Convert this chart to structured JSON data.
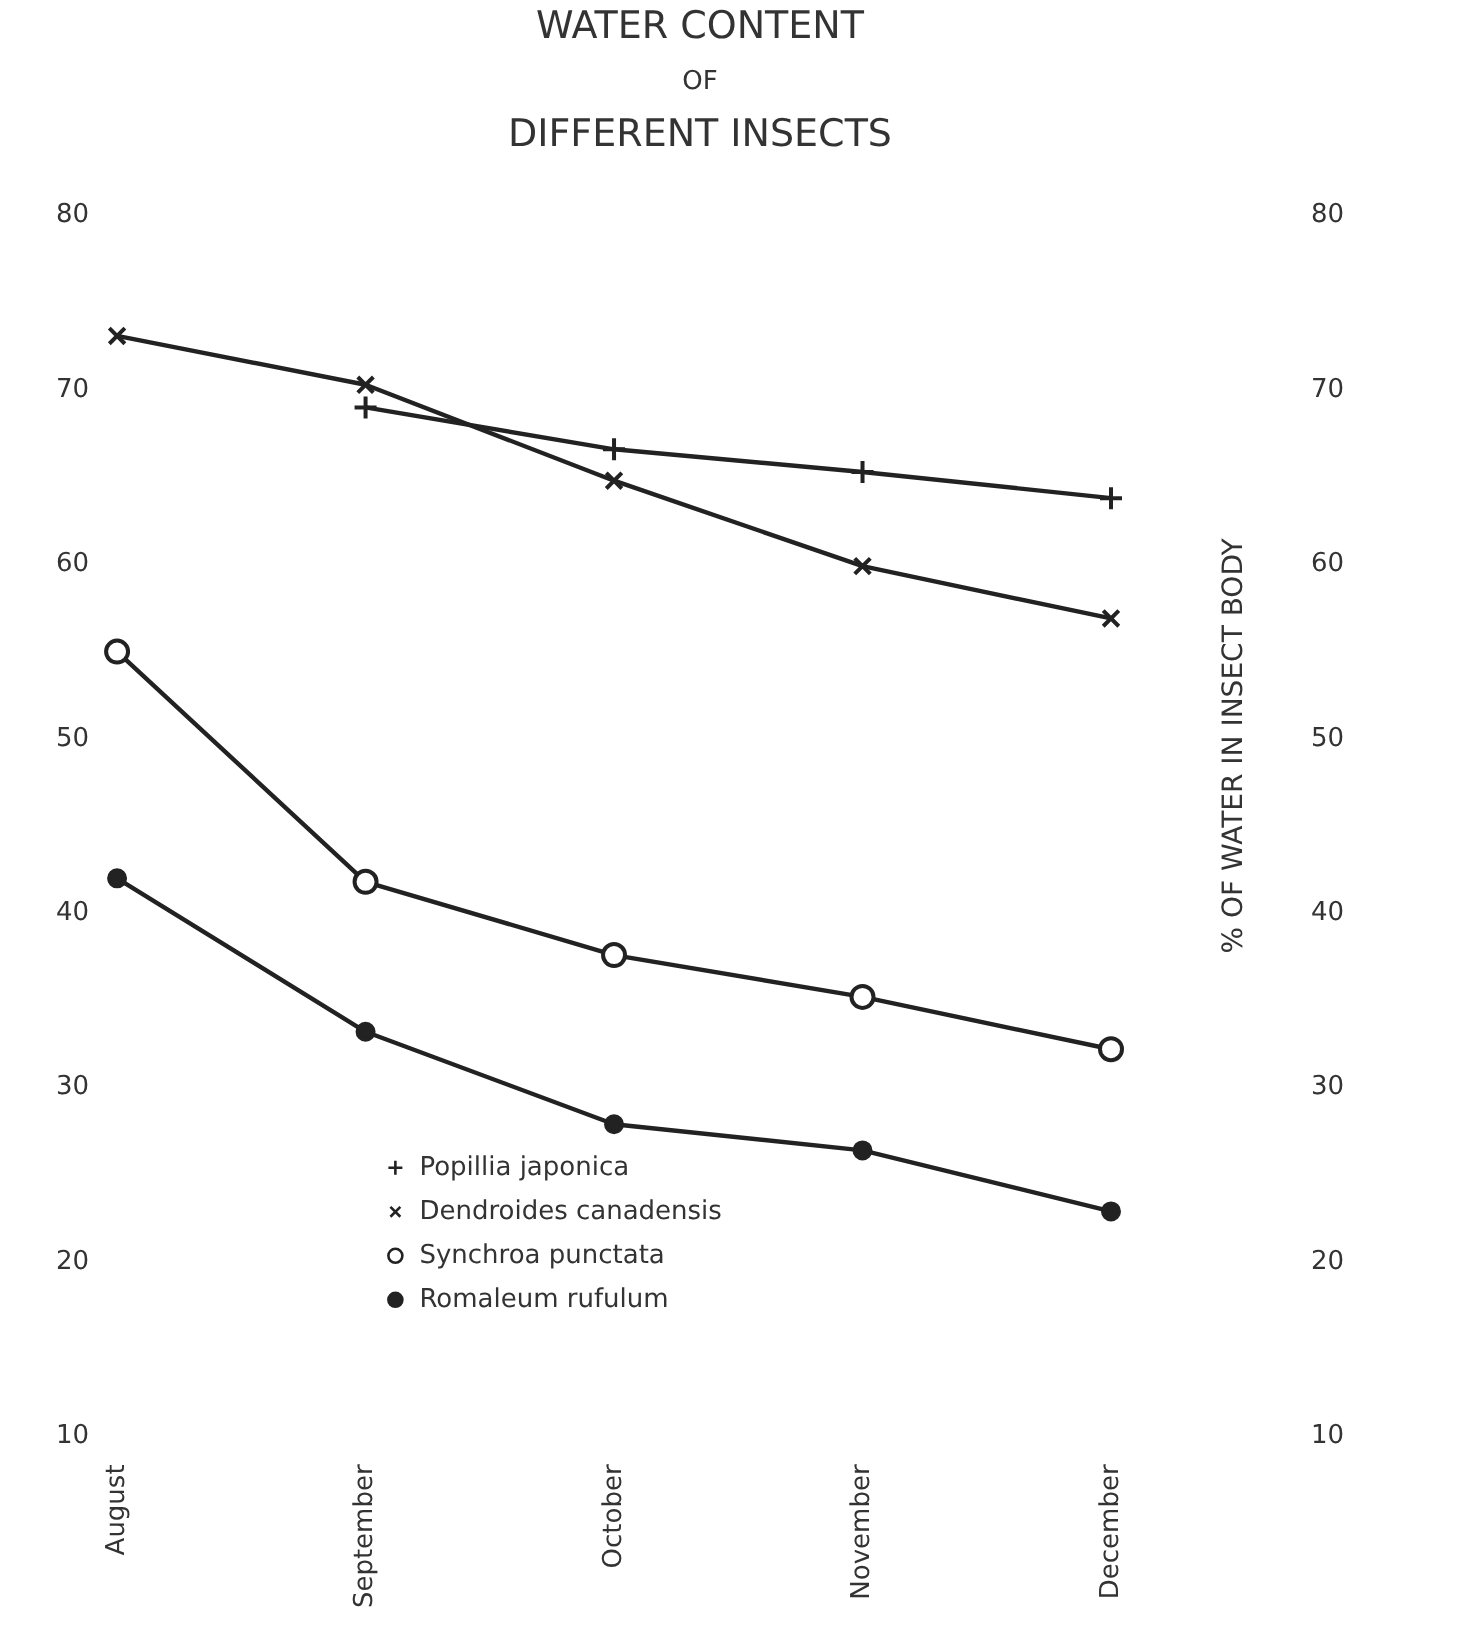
{
  "chart_data": {
    "type": "line",
    "title": "WATER CONTENT\nOF\nDIFFERENT INSECTS",
    "y2label": "% OF WATER IN INSECT BODY",
    "categories": [
      "August",
      "September",
      "October",
      "November",
      "December"
    ],
    "series": [
      {
        "name": "Popillia japonica",
        "color": "#222222",
        "marker": "cross",
        "values": [
          null,
          69.0,
          66.6,
          65.3,
          63.8
        ]
      },
      {
        "name": "Dendroides canadensis",
        "color": "#222222",
        "marker": "x",
        "values": [
          73.1,
          70.3,
          64.8,
          59.9,
          56.9
        ]
      },
      {
        "name": "Synchroa punctata",
        "color": "#222222",
        "marker": "circle-open",
        "values": [
          55.0,
          41.8,
          37.6,
          35.2,
          32.2
        ]
      },
      {
        "name": "Romaleum rufulum",
        "color": "#222222",
        "marker": "circle",
        "values": [
          42.0,
          33.2,
          27.9,
          26.4,
          22.9
        ]
      }
    ],
    "ylim": [
      10,
      80
    ],
    "yticks": [
      10,
      20,
      30,
      40,
      50,
      60,
      70,
      80
    ],
    "y2lim": [
      10,
      80
    ],
    "y2ticks": [
      10,
      20,
      30,
      40,
      50,
      60,
      70,
      80
    ],
    "grid": false,
    "legend": "bottom",
    "line_style": "solid"
  }
}
